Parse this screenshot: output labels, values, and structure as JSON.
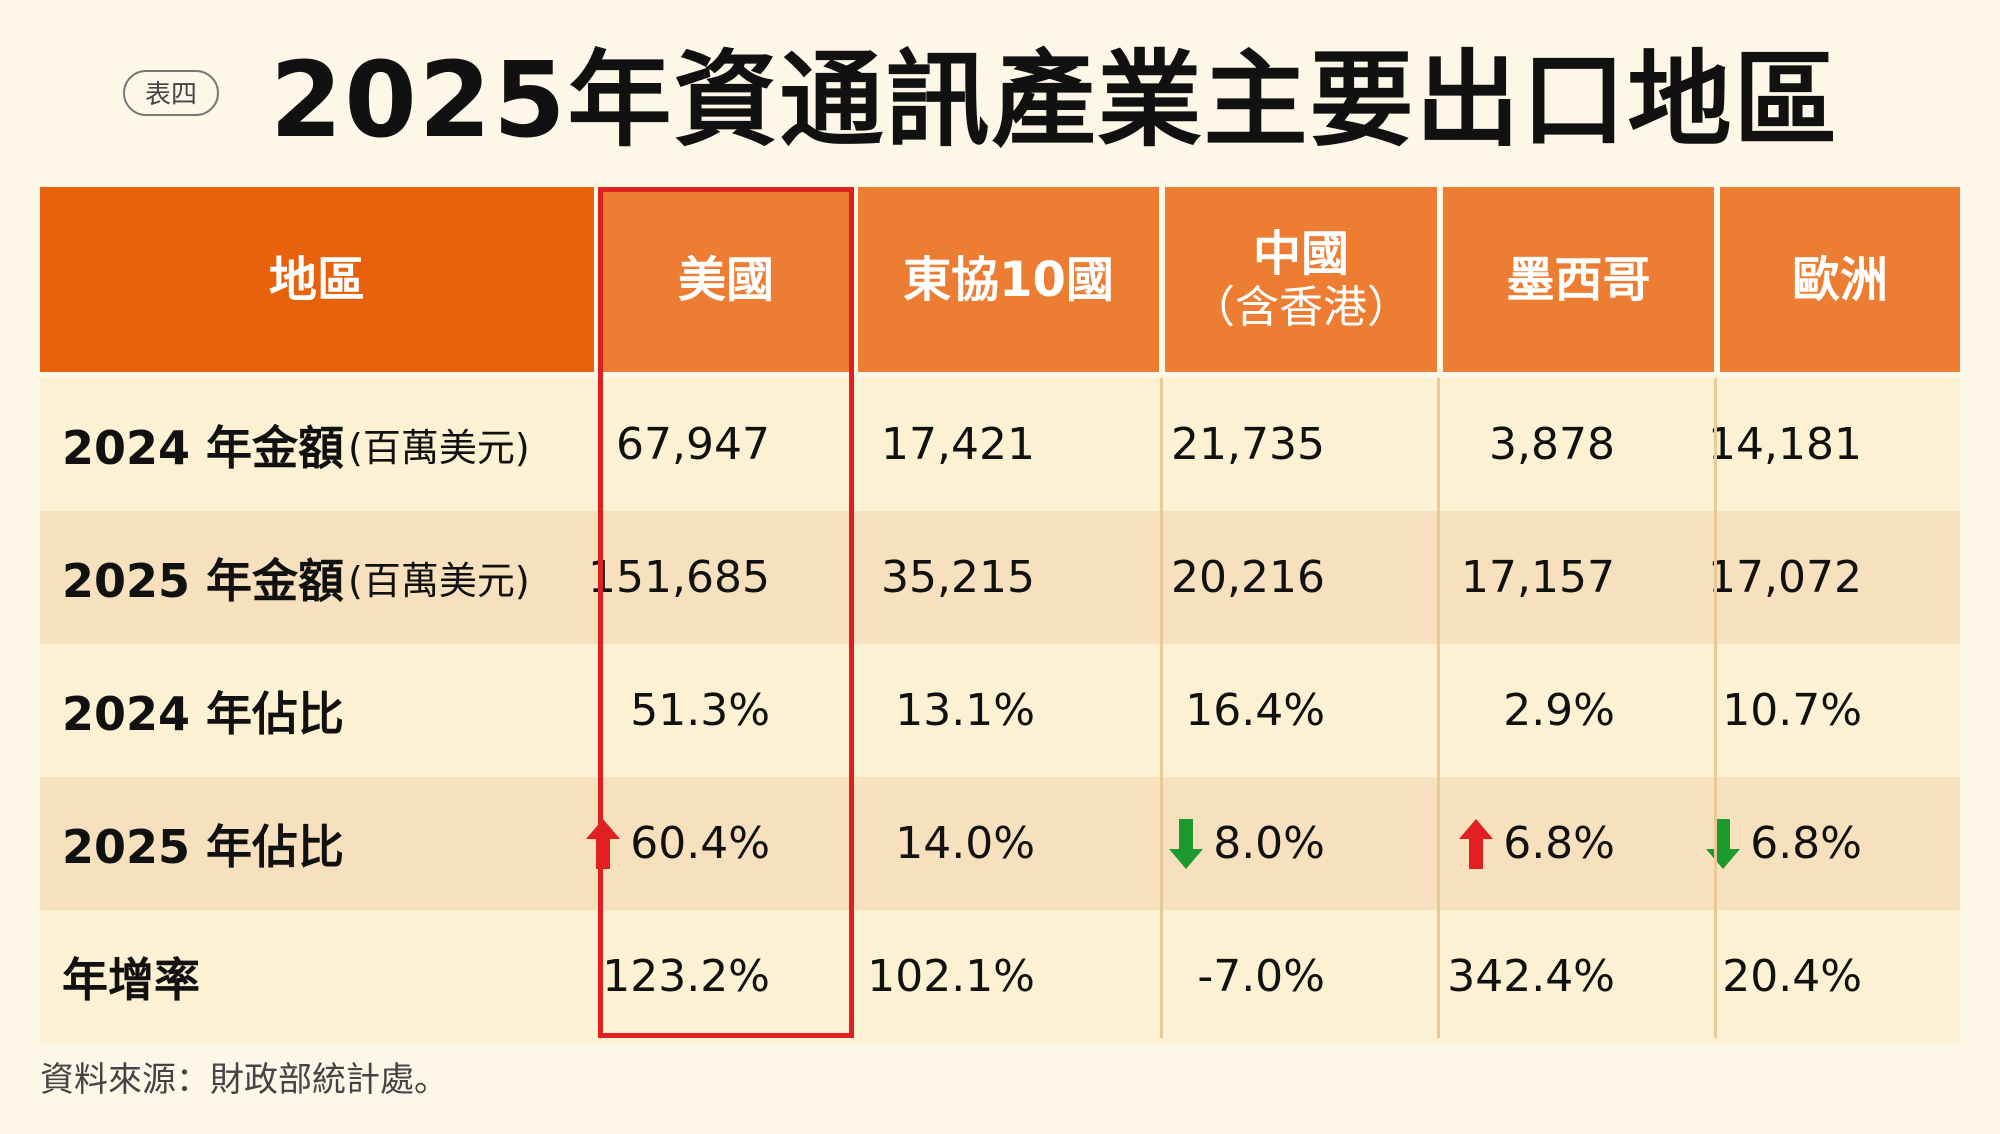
{
  "badge": "表四",
  "title": "2025年資通訊產業主要出口地區",
  "colors": {
    "header_dark": "#e8610c",
    "header_light": "#ee7d34",
    "row_light": "#fdf1d3",
    "row_dark": "#f6e0bd",
    "highlight_border": "#e02020",
    "up_arrow": "#e02020",
    "down_arrow": "#1d9a2e"
  },
  "chart_data": {
    "type": "table",
    "title": "2025年資通訊產業主要出口地區",
    "columns": [
      {
        "label": "地區",
        "sub": ""
      },
      {
        "label": "美國",
        "sub": ""
      },
      {
        "label": "東協10國",
        "sub": ""
      },
      {
        "label": "中國",
        "sub": "（含香港）"
      },
      {
        "label": "墨西哥",
        "sub": ""
      },
      {
        "label": "歐洲",
        "sub": ""
      }
    ],
    "rows": [
      {
        "label": "2024 年金額",
        "unit": "(百萬美元)",
        "values": [
          "67,947",
          "17,421",
          "21,735",
          "3,878",
          "14,181"
        ],
        "arrows": [
          "",
          "",
          "",
          "",
          ""
        ]
      },
      {
        "label": "2025 年金額",
        "unit": "(百萬美元)",
        "values": [
          "151,685",
          "35,215",
          "20,216",
          "17,157",
          "17,072"
        ],
        "arrows": [
          "",
          "",
          "",
          "",
          ""
        ]
      },
      {
        "label": "2024 年佔比",
        "unit": "",
        "values": [
          "51.3%",
          "13.1%",
          "16.4%",
          "2.9%",
          "10.7%"
        ],
        "arrows": [
          "",
          "",
          "",
          "",
          ""
        ]
      },
      {
        "label": "2025 年佔比",
        "unit": "",
        "values": [
          "60.4%",
          "14.0%",
          "8.0%",
          "6.8%",
          "6.8%"
        ],
        "arrows": [
          "up",
          "",
          "down",
          "up",
          "down"
        ]
      },
      {
        "label": "年增率",
        "unit": "",
        "values": [
          "123.2%",
          "102.1%",
          "-7.0%",
          "342.4%",
          "20.4%"
        ],
        "arrows": [
          "",
          "",
          "",
          "",
          ""
        ]
      }
    ],
    "highlighted_column": "美國"
  },
  "source": "資料來源：財政部統計處。"
}
